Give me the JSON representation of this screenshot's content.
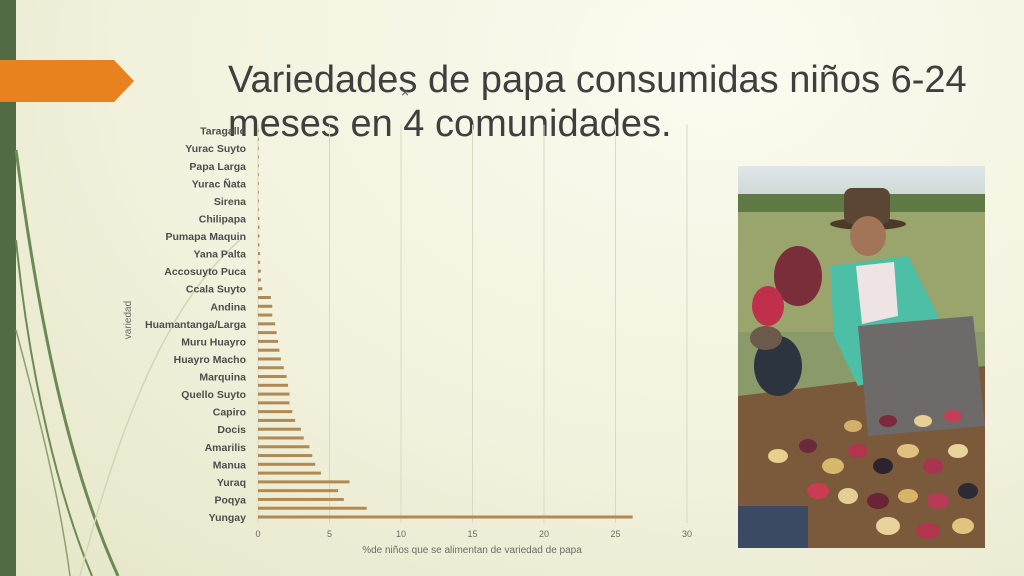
{
  "slide": {
    "title": "Variedades de papa consumidas niños 6-24 meses en 4 comunidades.",
    "close_glyph": "×"
  },
  "colors": {
    "bar": "#b08a52",
    "grid": "#d9d9c4",
    "accent": "#e8821e",
    "sidebar": "#536b45"
  },
  "chart_data": {
    "type": "bar",
    "orientation": "horizontal",
    "ylabel": "variedad",
    "xlabel": "%de niños que se alimentan de variedad de papa",
    "xlim": [
      0,
      30
    ],
    "xticks": [
      0,
      5,
      10,
      15,
      20,
      25,
      30
    ],
    "grid": true,
    "categories": [
      "Yungay",
      "",
      "Poqya",
      "",
      "Yuraq",
      "",
      "Manua",
      "",
      "Amarilis",
      "",
      "Docis",
      "",
      "Capiro",
      "",
      "Quello Suyto",
      "",
      "Marquina",
      "",
      "Huayro Macho",
      "",
      "Muru Huayro",
      "",
      "Huamantanga/Larga",
      "",
      "Andina",
      "",
      "Ccala Suyto",
      "",
      "Accosuyto Puca",
      "",
      "Yana Palta",
      "",
      "Pumapa Maquin",
      "",
      "Chilipapa",
      "",
      "Sirena",
      "",
      "Yurac Ñata",
      "",
      "Papa Larga",
      "",
      "Yurac Suyto",
      "",
      "Taragallo"
    ],
    "values": [
      26.2,
      7.6,
      6.0,
      5.6,
      6.4,
      4.4,
      4.0,
      3.8,
      3.6,
      3.2,
      3.0,
      2.6,
      2.4,
      2.2,
      2.2,
      2.1,
      2.0,
      1.8,
      1.6,
      1.5,
      1.4,
      1.3,
      1.2,
      1.0,
      1.0,
      0.9,
      0.3,
      0.2,
      0.2,
      0.15,
      0.15,
      0.1,
      0.1,
      0.1,
      0.1,
      0.05,
      0.05,
      0.05,
      0.05,
      0.05,
      0.05,
      0.05,
      0.05,
      0.05,
      0.05
    ]
  }
}
